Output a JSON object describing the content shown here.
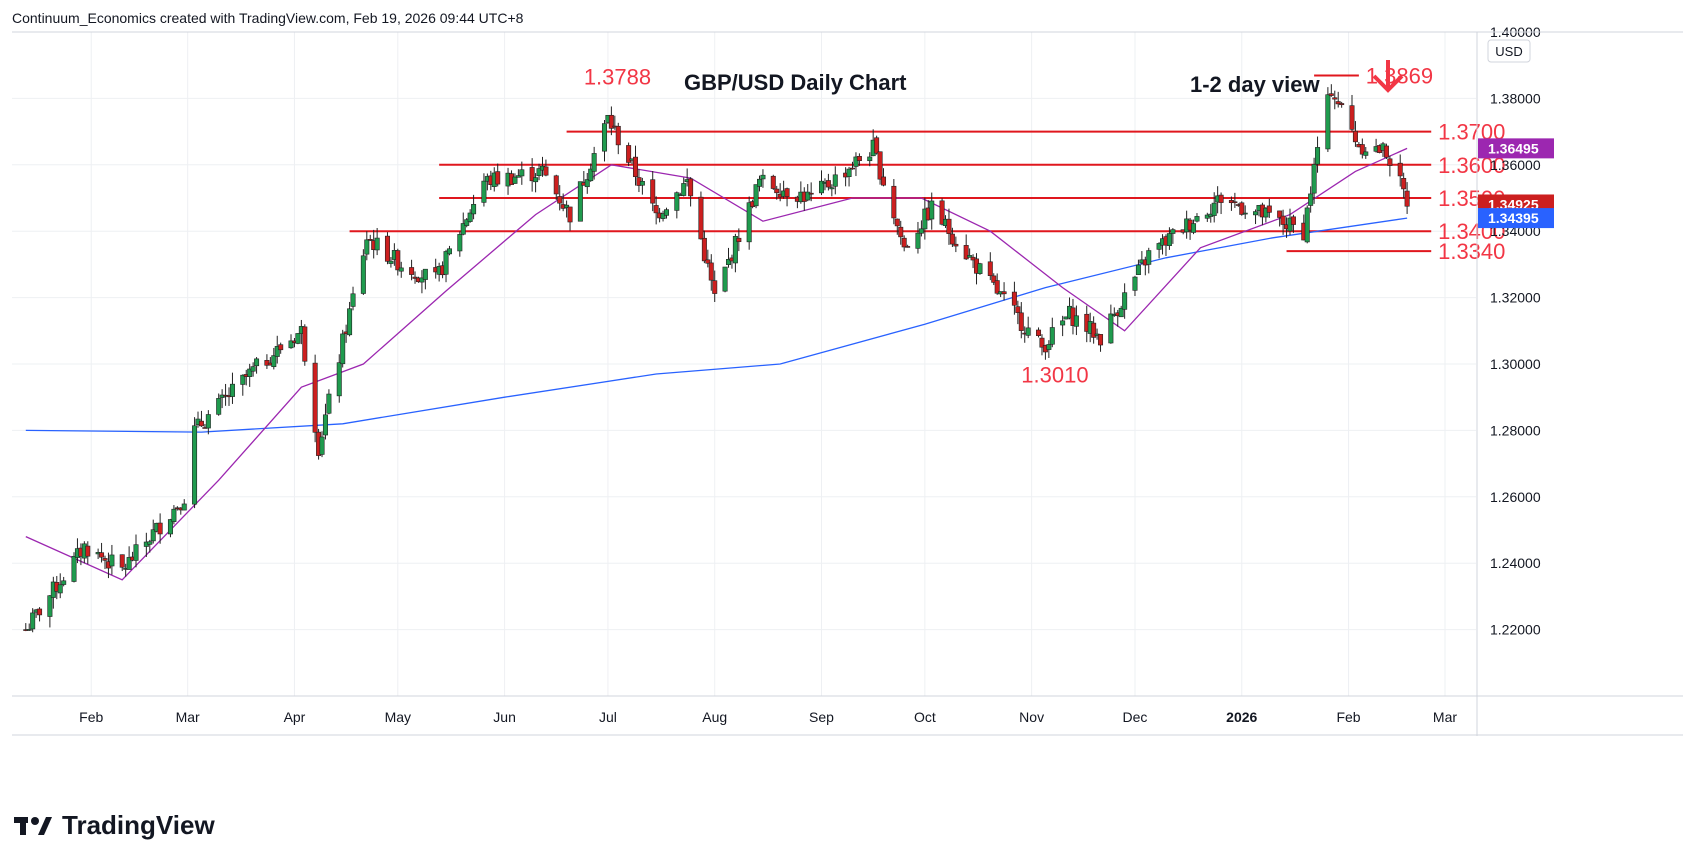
{
  "header": {
    "caption": "Continuum_Economics created with TradingView.com, Feb 19, 2026 09:44 UTC+8"
  },
  "brand": {
    "name": "TradingView"
  },
  "colors": {
    "up": "#1f9b4e",
    "down": "#cc1f1f",
    "level": "#e0171e",
    "ma_short": "#9c27b0",
    "ma_long": "#2962ff",
    "grid": "#eef0f3",
    "text": "#131722",
    "label_red": "#f23645"
  },
  "chart_data": {
    "type": "candlestick",
    "title": "GBP/USD Daily Chart",
    "subtitle": "1-2 day view",
    "view_direction": "down",
    "currency": "USD",
    "ylim": [
      1.2,
      1.4
    ],
    "y_ticks": [
      "1.40000",
      "1.38000",
      "1.36000",
      "1.34000",
      "1.32000",
      "1.30000",
      "1.28000",
      "1.26000",
      "1.24000",
      "1.22000"
    ],
    "x_ticks": [
      "Feb",
      "Mar",
      "Apr",
      "May",
      "Jun",
      "Jul",
      "Aug",
      "Sep",
      "Oct",
      "Nov",
      "Dec",
      "2026",
      "Feb",
      "Mar"
    ],
    "levels": [
      {
        "label": "1.3869",
        "value": 1.3869
      },
      {
        "label": "1.3700",
        "value": 1.37
      },
      {
        "label": "1.3600",
        "value": 1.36
      },
      {
        "label": "1.3500",
        "value": 1.35
      },
      {
        "label": "1.3400",
        "value": 1.34
      },
      {
        "label": "1.3340",
        "value": 1.334
      }
    ],
    "annotations": [
      {
        "label": "1.3788",
        "value": 1.3788
      },
      {
        "label": "1.3010",
        "value": 1.301
      }
    ],
    "price_tags": [
      {
        "label": "1.36495",
        "value": 1.36495,
        "series": "short_ma"
      },
      {
        "label": "1.34925",
        "value": 1.34925,
        "series": "last_price"
      },
      {
        "label": "1.34395",
        "value": 1.34395,
        "series": "long_ma"
      }
    ],
    "anchors": [
      {
        "date": "2025-01-13",
        "price": 1.22
      },
      {
        "date": "2025-01-30",
        "price": 1.245
      },
      {
        "date": "2025-02-10",
        "price": 1.238
      },
      {
        "date": "2025-02-28",
        "price": 1.26
      },
      {
        "date": "2025-03-03",
        "price": 1.28
      },
      {
        "date": "2025-03-20",
        "price": 1.298
      },
      {
        "date": "2025-04-03",
        "price": 1.31
      },
      {
        "date": "2025-04-08",
        "price": 1.275
      },
      {
        "date": "2025-04-22",
        "price": 1.338
      },
      {
        "date": "2025-05-02",
        "price": 1.33
      },
      {
        "date": "2025-05-12",
        "price": 1.325
      },
      {
        "date": "2025-05-26",
        "price": 1.355
      },
      {
        "date": "2025-06-12",
        "price": 1.358
      },
      {
        "date": "2025-06-20",
        "price": 1.345
      },
      {
        "date": "2025-07-01",
        "price": 1.374
      },
      {
        "date": "2025-07-15",
        "price": 1.345
      },
      {
        "date": "2025-07-24",
        "price": 1.355
      },
      {
        "date": "2025-08-01",
        "price": 1.32
      },
      {
        "date": "2025-08-14",
        "price": 1.355
      },
      {
        "date": "2025-08-29",
        "price": 1.35
      },
      {
        "date": "2025-09-16",
        "price": 1.365
      },
      {
        "date": "2025-09-25",
        "price": 1.335
      },
      {
        "date": "2025-10-03",
        "price": 1.347
      },
      {
        "date": "2025-10-14",
        "price": 1.332
      },
      {
        "date": "2025-11-04",
        "price": 1.305
      },
      {
        "date": "2025-11-12",
        "price": 1.315
      },
      {
        "date": "2025-11-21",
        "price": 1.308
      },
      {
        "date": "2025-12-05",
        "price": 1.333
      },
      {
        "date": "2025-12-26",
        "price": 1.35
      },
      {
        "date": "2026-01-19",
        "price": 1.34
      },
      {
        "date": "2026-01-23",
        "price": 1.365
      },
      {
        "date": "2026-01-27",
        "price": 1.383
      },
      {
        "date": "2026-02-04",
        "price": 1.366
      },
      {
        "date": "2026-02-12",
        "price": 1.364
      },
      {
        "date": "2026-02-18",
        "price": 1.3492
      }
    ],
    "short_ma": [
      {
        "date": "2025-01-13",
        "price": 1.248
      },
      {
        "date": "2025-02-10",
        "price": 1.235
      },
      {
        "date": "2025-03-10",
        "price": 1.265
      },
      {
        "date": "2025-04-03",
        "price": 1.293
      },
      {
        "date": "2025-04-21",
        "price": 1.3
      },
      {
        "date": "2025-05-15",
        "price": 1.322
      },
      {
        "date": "2025-06-10",
        "price": 1.345
      },
      {
        "date": "2025-07-02",
        "price": 1.36
      },
      {
        "date": "2025-07-25",
        "price": 1.356
      },
      {
        "date": "2025-08-15",
        "price": 1.343
      },
      {
        "date": "2025-09-10",
        "price": 1.35
      },
      {
        "date": "2025-09-30",
        "price": 1.35
      },
      {
        "date": "2025-10-20",
        "price": 1.34
      },
      {
        "date": "2025-11-10",
        "price": 1.323
      },
      {
        "date": "2025-11-28",
        "price": 1.31
      },
      {
        "date": "2025-12-20",
        "price": 1.335
      },
      {
        "date": "2026-01-15",
        "price": 1.345
      },
      {
        "date": "2026-02-03",
        "price": 1.358
      },
      {
        "date": "2026-02-18",
        "price": 1.36495
      }
    ],
    "long_ma": [
      {
        "date": "2025-01-13",
        "price": 1.28
      },
      {
        "date": "2025-03-05",
        "price": 1.2795
      },
      {
        "date": "2025-04-15",
        "price": 1.282
      },
      {
        "date": "2025-06-01",
        "price": 1.29
      },
      {
        "date": "2025-07-15",
        "price": 1.297
      },
      {
        "date": "2025-08-20",
        "price": 1.3
      },
      {
        "date": "2025-10-01",
        "price": 1.312
      },
      {
        "date": "2025-11-05",
        "price": 1.323
      },
      {
        "date": "2025-12-10",
        "price": 1.332
      },
      {
        "date": "2026-01-10",
        "price": 1.338
      },
      {
        "date": "2026-02-18",
        "price": 1.34395
      }
    ]
  }
}
